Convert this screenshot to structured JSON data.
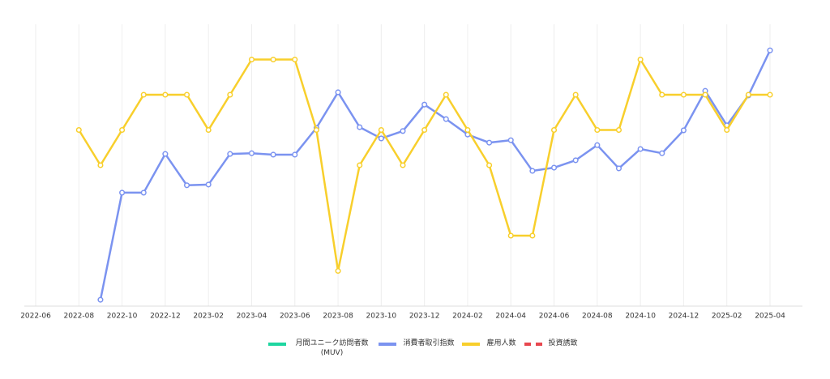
{
  "chart_data": {
    "type": "line",
    "categories": [
      "2022-06",
      null,
      "2022-08",
      null,
      "2022-10",
      null,
      "2022-12",
      null,
      "2023-02",
      null,
      "2023-04",
      null,
      "2023-06",
      null,
      "2023-08",
      null,
      "2023-10",
      null,
      "2023-12",
      null,
      "2024-02",
      null,
      "2024-04",
      null,
      "2024-06",
      null,
      "2024-08",
      null,
      "2024-10",
      null,
      "2024-12",
      null,
      "2025-02",
      null,
      "2025-04"
    ],
    "ylim": [
      0,
      8
    ],
    "grid": true,
    "legend": "bottom",
    "series": [
      {
        "name": "月間ユニーク訪問者数 (MUV)",
        "color": "#1ed6a0",
        "values": [
          null,
          null,
          null,
          null,
          null,
          null,
          null,
          null,
          null,
          null,
          null,
          null,
          null,
          null,
          null,
          null,
          null,
          null,
          null,
          null,
          null,
          null,
          null,
          null,
          null,
          null,
          null,
          null,
          null,
          null,
          null,
          null,
          null,
          null,
          null
        ]
      },
      {
        "name": "消費者取引指数",
        "color": "#7b93f0",
        "values": [
          null,
          null,
          null,
          0.18,
          3.22,
          3.22,
          4.32,
          3.43,
          3.45,
          4.32,
          4.34,
          4.3,
          4.3,
          5.06,
          6.07,
          5.08,
          4.76,
          4.97,
          5.72,
          5.31,
          4.87,
          4.64,
          4.71,
          3.84,
          3.93,
          4.14,
          4.57,
          3.91,
          4.46,
          4.34,
          4.99,
          6.11,
          5.13,
          5.98,
          7.26
        ]
      },
      {
        "name": "雇用人数",
        "color": "#f8cf2c",
        "values": [
          null,
          null,
          5,
          4,
          5,
          6,
          6,
          6,
          5,
          6,
          7,
          7,
          7,
          5,
          1,
          4,
          5,
          4,
          5,
          6,
          5,
          4,
          2,
          2,
          5,
          6,
          5,
          5,
          7,
          6,
          6,
          6,
          5,
          6,
          6
        ]
      },
      {
        "name": "投資誘致",
        "color": "#e8474f",
        "dash": true,
        "values": [
          null,
          null,
          null,
          null,
          null,
          null,
          null,
          null,
          null,
          null,
          null,
          null,
          null,
          null,
          null,
          null,
          null,
          null,
          null,
          null,
          null,
          null,
          null,
          null,
          null,
          null,
          null,
          null,
          null,
          null,
          null,
          null,
          null,
          null,
          null
        ]
      }
    ]
  }
}
